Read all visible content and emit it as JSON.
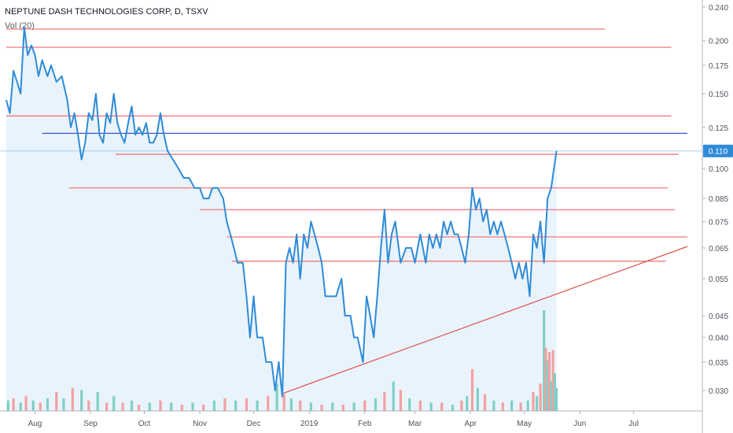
{
  "header": {
    "symbol_title": "NEPTUNE DASH TECHNOLOGIES CORP, D, TSXV",
    "volume_label": "Vol (20)"
  },
  "price_badge": "0.110",
  "colors": {
    "price_line": "#2e8bd8",
    "area_fill": "#e9f3fc",
    "support_lines": "#f26b6b",
    "blue_resistance": "#3a55c4",
    "trendline": "#d9534f",
    "volume_up": "#7fd0c6",
    "volume_down": "#f4a0a0",
    "badge": "#2e8bd8"
  },
  "chart_data": {
    "type": "line",
    "y_scale": "log",
    "ylim": [
      0.0255,
      0.245
    ],
    "y_ticks": [
      "0.240",
      "0.200",
      "0.175",
      "0.150",
      "0.125",
      "0.100",
      "0.085",
      "0.075",
      "0.065",
      "0.055",
      "0.045",
      "0.040",
      "0.035",
      "0.030"
    ],
    "y_tick_values": [
      0.24,
      0.2,
      0.175,
      0.15,
      0.125,
      0.1,
      0.085,
      0.075,
      0.065,
      0.055,
      0.045,
      0.04,
      0.035,
      0.03
    ],
    "x_range": [
      "2018-07-16",
      "2019-07-31"
    ],
    "x_ticks": [
      {
        "label": "Aug",
        "date": "2018-08-01"
      },
      {
        "label": "Sep",
        "date": "2018-09-01"
      },
      {
        "label": "Oct",
        "date": "2018-10-01"
      },
      {
        "label": "Nov",
        "date": "2018-11-01"
      },
      {
        "label": "Dec",
        "date": "2018-12-01"
      },
      {
        "label": "2019",
        "date": "2019-01-01"
      },
      {
        "label": "Feb",
        "date": "2019-02-01"
      },
      {
        "label": "Mar",
        "date": "2019-03-01"
      },
      {
        "label": "Apr",
        "date": "2019-04-01"
      },
      {
        "label": "May",
        "date": "2019-05-01"
      },
      {
        "label": "Jun",
        "date": "2019-06-01"
      },
      {
        "label": "Jul",
        "date": "2019-07-01"
      }
    ],
    "series": [
      {
        "points": [
          [
            "2018-07-16",
            0.145
          ],
          [
            "2018-07-18",
            0.135
          ],
          [
            "2018-07-20",
            0.17
          ],
          [
            "2018-07-22",
            0.16
          ],
          [
            "2018-07-24",
            0.15
          ],
          [
            "2018-07-26",
            0.215
          ],
          [
            "2018-07-28",
            0.185
          ],
          [
            "2018-07-30",
            0.195
          ],
          [
            "2018-08-01",
            0.185
          ],
          [
            "2018-08-03",
            0.165
          ],
          [
            "2018-08-05",
            0.18
          ],
          [
            "2018-08-08",
            0.165
          ],
          [
            "2018-08-10",
            0.175
          ],
          [
            "2018-08-13",
            0.16
          ],
          [
            "2018-08-16",
            0.165
          ],
          [
            "2018-08-19",
            0.145
          ],
          [
            "2018-08-21",
            0.125
          ],
          [
            "2018-08-23",
            0.135
          ],
          [
            "2018-08-25",
            0.12
          ],
          [
            "2018-08-27",
            0.105
          ],
          [
            "2018-08-29",
            0.115
          ],
          [
            "2018-08-31",
            0.135
          ],
          [
            "2018-09-02",
            0.13
          ],
          [
            "2018-09-04",
            0.15
          ],
          [
            "2018-09-06",
            0.12
          ],
          [
            "2018-09-08",
            0.115
          ],
          [
            "2018-09-10",
            0.135
          ],
          [
            "2018-09-12",
            0.128
          ],
          [
            "2018-09-14",
            0.15
          ],
          [
            "2018-09-16",
            0.128
          ],
          [
            "2018-09-18",
            0.12
          ],
          [
            "2018-09-20",
            0.115
          ],
          [
            "2018-09-22",
            0.128
          ],
          [
            "2018-09-24",
            0.14
          ],
          [
            "2018-09-26",
            0.12
          ],
          [
            "2018-09-28",
            0.125
          ],
          [
            "2018-09-30",
            0.12
          ],
          [
            "2018-10-02",
            0.128
          ],
          [
            "2018-10-04",
            0.115
          ],
          [
            "2018-10-06",
            0.115
          ],
          [
            "2018-10-08",
            0.12
          ],
          [
            "2018-10-10",
            0.135
          ],
          [
            "2018-10-12",
            0.12
          ],
          [
            "2018-10-14",
            0.11
          ],
          [
            "2018-10-17",
            0.105
          ],
          [
            "2018-10-20",
            0.1
          ],
          [
            "2018-10-23",
            0.095
          ],
          [
            "2018-10-26",
            0.095
          ],
          [
            "2018-10-29",
            0.09
          ],
          [
            "2018-11-01",
            0.09
          ],
          [
            "2018-11-03",
            0.085
          ],
          [
            "2018-11-06",
            0.085
          ],
          [
            "2018-11-08",
            0.09
          ],
          [
            "2018-11-11",
            0.09
          ],
          [
            "2018-11-14",
            0.085
          ],
          [
            "2018-11-16",
            0.075
          ],
          [
            "2018-11-18",
            0.07
          ],
          [
            "2018-11-20",
            0.065
          ],
          [
            "2018-11-22",
            0.06
          ],
          [
            "2018-11-25",
            0.06
          ],
          [
            "2018-11-27",
            0.05
          ],
          [
            "2018-11-29",
            0.04
          ],
          [
            "2018-12-01",
            0.05
          ],
          [
            "2018-12-03",
            0.04
          ],
          [
            "2018-12-06",
            0.04
          ],
          [
            "2018-12-08",
            0.035
          ],
          [
            "2018-12-11",
            0.035
          ],
          [
            "2018-12-13",
            0.03
          ],
          [
            "2018-12-15",
            0.035
          ],
          [
            "2018-12-17",
            0.029
          ],
          [
            "2018-12-19",
            0.06
          ],
          [
            "2018-12-21",
            0.065
          ],
          [
            "2018-12-23",
            0.06
          ],
          [
            "2018-12-25",
            0.07
          ],
          [
            "2018-12-27",
            0.055
          ],
          [
            "2018-12-29",
            0.07
          ],
          [
            "2018-12-31",
            0.065
          ],
          [
            "2019-01-02",
            0.075
          ],
          [
            "2019-01-04",
            0.07
          ],
          [
            "2019-01-06",
            0.065
          ],
          [
            "2019-01-08",
            0.06
          ],
          [
            "2019-01-10",
            0.05
          ],
          [
            "2019-01-13",
            0.05
          ],
          [
            "2019-01-16",
            0.05
          ],
          [
            "2019-01-19",
            0.055
          ],
          [
            "2019-01-21",
            0.045
          ],
          [
            "2019-01-24",
            0.045
          ],
          [
            "2019-01-26",
            0.04
          ],
          [
            "2019-01-28",
            0.04
          ],
          [
            "2019-01-31",
            0.035
          ],
          [
            "2019-02-02",
            0.05
          ],
          [
            "2019-02-04",
            0.045
          ],
          [
            "2019-02-06",
            0.04
          ],
          [
            "2019-02-08",
            0.05
          ],
          [
            "2019-02-10",
            0.065
          ],
          [
            "2019-02-12",
            0.08
          ],
          [
            "2019-02-14",
            0.06
          ],
          [
            "2019-02-16",
            0.07
          ],
          [
            "2019-02-18",
            0.075
          ],
          [
            "2019-02-21",
            0.06
          ],
          [
            "2019-02-24",
            0.065
          ],
          [
            "2019-02-27",
            0.065
          ],
          [
            "2019-03-01",
            0.06
          ],
          [
            "2019-03-04",
            0.07
          ],
          [
            "2019-03-07",
            0.06
          ],
          [
            "2019-03-09",
            0.07
          ],
          [
            "2019-03-11",
            0.065
          ],
          [
            "2019-03-13",
            0.07
          ],
          [
            "2019-03-15",
            0.065
          ],
          [
            "2019-03-17",
            0.075
          ],
          [
            "2019-03-19",
            0.07
          ],
          [
            "2019-03-21",
            0.075
          ],
          [
            "2019-03-23",
            0.07
          ],
          [
            "2019-03-25",
            0.07
          ],
          [
            "2019-03-27",
            0.065
          ],
          [
            "2019-03-29",
            0.06
          ],
          [
            "2019-03-31",
            0.07
          ],
          [
            "2019-04-02",
            0.09
          ],
          [
            "2019-04-04",
            0.08
          ],
          [
            "2019-04-06",
            0.085
          ],
          [
            "2019-04-08",
            0.075
          ],
          [
            "2019-04-10",
            0.08
          ],
          [
            "2019-04-12",
            0.07
          ],
          [
            "2019-04-14",
            0.075
          ],
          [
            "2019-04-16",
            0.07
          ],
          [
            "2019-04-18",
            0.075
          ],
          [
            "2019-04-20",
            0.07
          ],
          [
            "2019-04-22",
            0.065
          ],
          [
            "2019-04-24",
            0.06
          ],
          [
            "2019-04-26",
            0.055
          ],
          [
            "2019-04-28",
            0.06
          ],
          [
            "2019-04-30",
            0.055
          ],
          [
            "2019-05-02",
            0.06
          ],
          [
            "2019-05-04",
            0.05
          ],
          [
            "2019-05-06",
            0.07
          ],
          [
            "2019-05-08",
            0.065
          ],
          [
            "2019-05-10",
            0.075
          ],
          [
            "2019-05-12",
            0.06
          ],
          [
            "2019-05-14",
            0.085
          ],
          [
            "2019-05-16",
            0.09
          ],
          [
            "2019-05-19",
            0.11
          ]
        ]
      }
    ],
    "horizontal_levels": [
      {
        "value": 0.213,
        "from": "2018-07-16",
        "to": "2019-06-15",
        "color": "#f26b6b"
      },
      {
        "value": 0.193,
        "from": "2018-07-16",
        "to": "2019-07-22",
        "color": "#f26b6b"
      },
      {
        "value": 0.133,
        "from": "2018-07-16",
        "to": "2019-07-22",
        "color": "#f26b6b"
      },
      {
        "value": 0.121,
        "from": "2018-08-05",
        "to": "2019-07-31",
        "color": "#3a55c4"
      },
      {
        "value": 0.108,
        "from": "2018-09-15",
        "to": "2019-07-26",
        "color": "#f26b6b"
      },
      {
        "value": 0.09,
        "from": "2018-08-20",
        "to": "2019-07-20",
        "color": "#f26b6b"
      },
      {
        "value": 0.08,
        "from": "2018-11-01",
        "to": "2019-07-24",
        "color": "#f26b6b"
      },
      {
        "value": 0.069,
        "from": "2018-11-16",
        "to": "2019-07-31",
        "color": "#f26b6b"
      },
      {
        "value": 0.0605,
        "from": "2018-11-19",
        "to": "2019-07-19",
        "color": "#f26b6b"
      }
    ],
    "trendline": {
      "from": [
        "2018-12-17",
        0.0295
      ],
      "to": [
        "2019-07-31",
        0.0655
      ],
      "color": "#d9534f"
    },
    "volume": [
      {
        "d": "2018-07-17",
        "v": 0.25,
        "up": true
      },
      {
        "d": "2018-07-20",
        "v": 0.3,
        "up": false
      },
      {
        "d": "2018-07-24",
        "v": 0.2,
        "up": true
      },
      {
        "d": "2018-07-27",
        "v": 0.35,
        "up": false
      },
      {
        "d": "2018-07-31",
        "v": 0.25,
        "up": true
      },
      {
        "d": "2018-08-04",
        "v": 0.2,
        "up": false
      },
      {
        "d": "2018-08-08",
        "v": 0.3,
        "up": true
      },
      {
        "d": "2018-08-13",
        "v": 0.45,
        "up": false
      },
      {
        "d": "2018-08-17",
        "v": 0.3,
        "up": true
      },
      {
        "d": "2018-08-22",
        "v": 0.55,
        "up": false
      },
      {
        "d": "2018-08-27",
        "v": 0.5,
        "up": true
      },
      {
        "d": "2018-08-31",
        "v": 0.25,
        "up": false
      },
      {
        "d": "2018-09-05",
        "v": 0.45,
        "up": true
      },
      {
        "d": "2018-09-10",
        "v": 0.2,
        "up": false
      },
      {
        "d": "2018-09-14",
        "v": 0.35,
        "up": true
      },
      {
        "d": "2018-09-19",
        "v": 0.2,
        "up": false
      },
      {
        "d": "2018-09-24",
        "v": 0.25,
        "up": true
      },
      {
        "d": "2018-09-28",
        "v": 0.15,
        "up": false
      },
      {
        "d": "2018-10-04",
        "v": 0.2,
        "up": true
      },
      {
        "d": "2018-10-10",
        "v": 0.25,
        "up": false
      },
      {
        "d": "2018-10-16",
        "v": 0.2,
        "up": true
      },
      {
        "d": "2018-10-22",
        "v": 0.15,
        "up": false
      },
      {
        "d": "2018-10-28",
        "v": 0.2,
        "up": true
      },
      {
        "d": "2018-11-03",
        "v": 0.15,
        "up": false
      },
      {
        "d": "2018-11-09",
        "v": 0.25,
        "up": true
      },
      {
        "d": "2018-11-15",
        "v": 0.3,
        "up": false
      },
      {
        "d": "2018-11-21",
        "v": 0.25,
        "up": true
      },
      {
        "d": "2018-11-27",
        "v": 0.3,
        "up": false
      },
      {
        "d": "2018-12-03",
        "v": 0.25,
        "up": true
      },
      {
        "d": "2018-12-09",
        "v": 0.35,
        "up": false
      },
      {
        "d": "2018-12-14",
        "v": 0.65,
        "up": true
      },
      {
        "d": "2018-12-18",
        "v": 0.4,
        "up": false
      },
      {
        "d": "2018-12-22",
        "v": 0.3,
        "up": true
      },
      {
        "d": "2018-12-27",
        "v": 0.25,
        "up": false
      },
      {
        "d": "2019-01-02",
        "v": 0.2,
        "up": true
      },
      {
        "d": "2019-01-08",
        "v": 0.15,
        "up": false
      },
      {
        "d": "2019-01-14",
        "v": 0.2,
        "up": true
      },
      {
        "d": "2019-01-20",
        "v": 0.15,
        "up": false
      },
      {
        "d": "2019-01-26",
        "v": 0.2,
        "up": true
      },
      {
        "d": "2019-02-01",
        "v": 0.25,
        "up": false
      },
      {
        "d": "2019-02-07",
        "v": 0.3,
        "up": true
      },
      {
        "d": "2019-02-12",
        "v": 0.45,
        "up": false
      },
      {
        "d": "2019-02-17",
        "v": 0.7,
        "up": true
      },
      {
        "d": "2019-02-21",
        "v": 0.5,
        "up": false
      },
      {
        "d": "2019-02-26",
        "v": 0.3,
        "up": true
      },
      {
        "d": "2019-03-04",
        "v": 0.25,
        "up": false
      },
      {
        "d": "2019-03-10",
        "v": 0.2,
        "up": true
      },
      {
        "d": "2019-03-16",
        "v": 0.2,
        "up": false
      },
      {
        "d": "2019-03-22",
        "v": 0.15,
        "up": true
      },
      {
        "d": "2019-03-27",
        "v": 0.25,
        "up": false
      },
      {
        "d": "2019-03-30",
        "v": 0.35,
        "up": true
      },
      {
        "d": "2019-04-02",
        "v": 1.0,
        "up": false
      },
      {
        "d": "2019-04-05",
        "v": 0.55,
        "up": true
      },
      {
        "d": "2019-04-09",
        "v": 0.4,
        "up": false
      },
      {
        "d": "2019-04-14",
        "v": 0.25,
        "up": true
      },
      {
        "d": "2019-04-19",
        "v": 0.2,
        "up": false
      },
      {
        "d": "2019-04-24",
        "v": 0.25,
        "up": true
      },
      {
        "d": "2019-04-29",
        "v": 0.2,
        "up": false
      },
      {
        "d": "2019-05-03",
        "v": 0.25,
        "up": true
      },
      {
        "d": "2019-05-06",
        "v": 0.45,
        "up": false
      },
      {
        "d": "2019-05-08",
        "v": 0.35,
        "up": true
      },
      {
        "d": "2019-05-10",
        "v": 0.65,
        "up": false
      },
      {
        "d": "2019-05-12",
        "v": 2.4,
        "up": true
      },
      {
        "d": "2019-05-13",
        "v": 1.5,
        "up": false
      },
      {
        "d": "2019-05-14",
        "v": 1.2,
        "up": true
      },
      {
        "d": "2019-05-15",
        "v": 1.4,
        "up": false
      },
      {
        "d": "2019-05-16",
        "v": 0.7,
        "up": true
      },
      {
        "d": "2019-05-17",
        "v": 1.45,
        "up": false
      },
      {
        "d": "2019-05-18",
        "v": 0.9,
        "up": true
      },
      {
        "d": "2019-05-19",
        "v": 0.55,
        "up": true
      }
    ]
  }
}
